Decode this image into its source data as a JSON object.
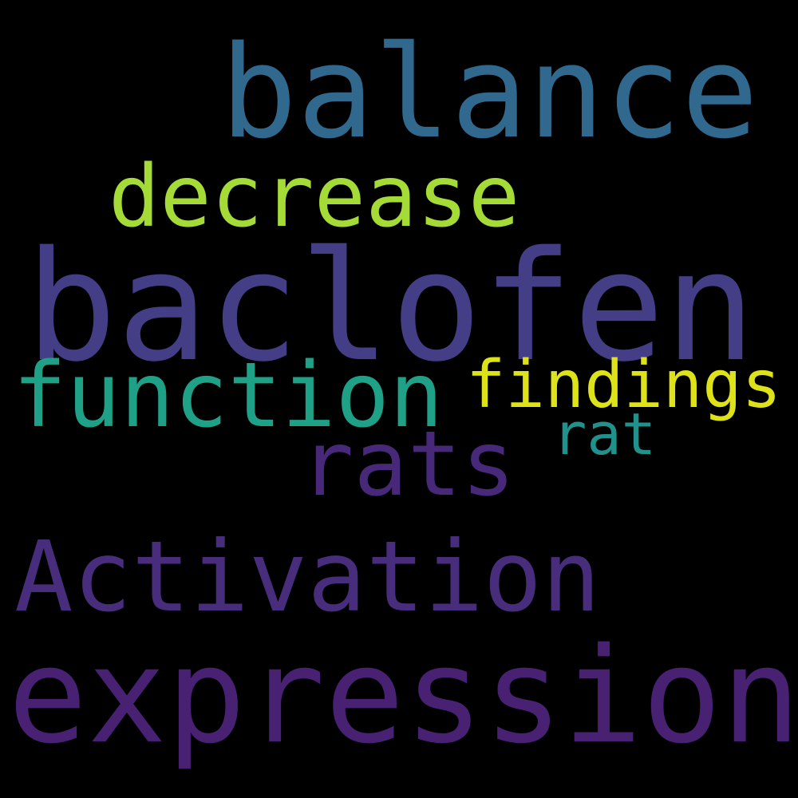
{
  "words": {
    "balance": {
      "text": "balance",
      "color": "#31688e"
    },
    "decrease": {
      "text": "decrease",
      "color": "#a5db36"
    },
    "baclofen": {
      "text": "baclofen",
      "color": "#433e85"
    },
    "function": {
      "text": "function",
      "color": "#1fa187"
    },
    "findings": {
      "text": "findings",
      "color": "#dde318"
    },
    "rat": {
      "text": "rat",
      "color": "#21918c"
    },
    "rats": {
      "text": "rats",
      "color": "#482878"
    },
    "activation": {
      "text": "Activation",
      "color": "#472d7b"
    },
    "expression": {
      "text": "expression",
      "color": "#482173"
    }
  }
}
